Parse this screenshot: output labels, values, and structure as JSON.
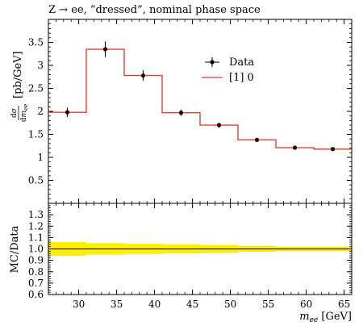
{
  "title": "Z → ee, ”dressed”, nominal phase space",
  "chart_data": {
    "type": "line",
    "main": {
      "ylabel": "[pb/GeV]",
      "ylabel_math": "dσ / dm_ee",
      "ylim": [
        0.0,
        4.0
      ],
      "yticks": [
        "0.5",
        "1",
        "1.5",
        "2",
        "2.5",
        "3",
        "3.5"
      ],
      "series": [
        {
          "name": "Data",
          "style": "points-with-errorbars",
          "color": "#000000",
          "x": [
            28.5,
            33.5,
            38.5,
            43.5,
            48.5,
            53.5,
            58.5,
            63.5
          ],
          "y": [
            1.98,
            3.35,
            2.78,
            1.97,
            1.7,
            1.38,
            1.21,
            1.18
          ],
          "yerr": [
            0.1,
            0.17,
            0.11,
            0.07,
            0.05,
            0.03,
            0.02,
            0.02
          ]
        },
        {
          "name": "[1] 0",
          "style": "step",
          "color": "#e8402a",
          "bin_edges": [
            26,
            31,
            36,
            41,
            46,
            51,
            56,
            61,
            66
          ],
          "values": [
            1.98,
            3.35,
            2.78,
            1.97,
            1.7,
            1.38,
            1.21,
            1.18
          ]
        }
      ],
      "legend_position": "top-right"
    },
    "ratio": {
      "ylabel": "MC/Data",
      "ylim": [
        0.6,
        1.4
      ],
      "yticks": [
        "0.6",
        "0.7",
        "0.8",
        "0.9",
        "1.0",
        "1.1",
        "1.2",
        "1.3"
      ],
      "reference": 1.0,
      "band_color": "#ffee00",
      "band_halfwidth": [
        0.06,
        0.05,
        0.045,
        0.04,
        0.035,
        0.025,
        0.02,
        0.02
      ],
      "xlabel": "[GeV]",
      "xlabel_math": "m_ee",
      "xlim": [
        26,
        66
      ],
      "xticks": [
        "30",
        "35",
        "40",
        "45",
        "50",
        "55",
        "60",
        "65"
      ]
    }
  }
}
